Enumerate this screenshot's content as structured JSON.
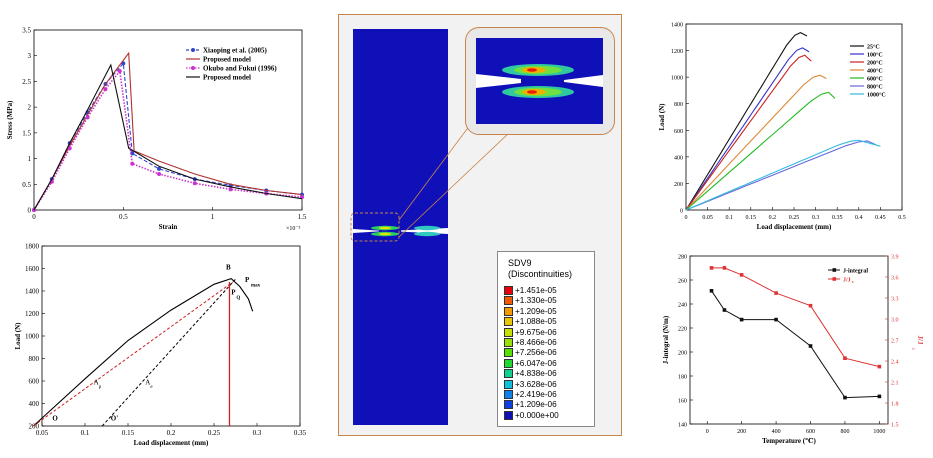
{
  "chart_data": [
    {
      "type": "line",
      "xlabel": "Strain",
      "ylabel": "Stress (MPa)",
      "x_exponent": "×10⁻³",
      "xlim": [
        0,
        1.5
      ],
      "ylim": [
        0,
        3.5
      ],
      "xticks": [
        "0",
        "0.5",
        "1",
        "1.5"
      ],
      "yticks": [
        "0",
        "0.5",
        "1",
        "1.5",
        "2",
        "2.5",
        "3",
        "3.5"
      ],
      "legend": "top-right",
      "series": [
        {
          "name": "Xiaoping et al. (2005)",
          "color": "#3344cc",
          "style": "dashed-circle",
          "x": [
            0,
            0.1,
            0.2,
            0.3,
            0.4,
            0.5,
            0.55,
            0.7,
            0.9,
            1.1,
            1.3,
            1.5
          ],
          "y": [
            0,
            0.6,
            1.3,
            1.9,
            2.45,
            2.85,
            1.1,
            0.8,
            0.6,
            0.48,
            0.38,
            0.3
          ]
        },
        {
          "name": "Proposed model",
          "color": "#b03030",
          "style": "solid",
          "x": [
            0,
            0.1,
            0.2,
            0.3,
            0.4,
            0.53,
            0.56,
            0.7,
            0.9,
            1.1,
            1.3,
            1.5
          ],
          "y": [
            0,
            0.6,
            1.25,
            1.85,
            2.45,
            3.05,
            1.15,
            0.95,
            0.7,
            0.5,
            0.38,
            0.3
          ]
        },
        {
          "name": "Okubo and Fukui (1996)",
          "color": "#cc33cc",
          "style": "dotted-circle",
          "x": [
            0,
            0.1,
            0.2,
            0.3,
            0.4,
            0.48,
            0.55,
            0.7,
            0.9,
            1.1,
            1.3,
            1.5
          ],
          "y": [
            0,
            0.55,
            1.2,
            1.8,
            2.35,
            2.7,
            0.9,
            0.7,
            0.52,
            0.4,
            0.32,
            0.25
          ]
        },
        {
          "name": "Proposed model",
          "color": "#111111",
          "style": "solid",
          "x": [
            0,
            0.1,
            0.2,
            0.3,
            0.43,
            0.53,
            0.58,
            0.7,
            0.9,
            1.1,
            1.3,
            1.5
          ],
          "y": [
            0,
            0.6,
            1.3,
            1.95,
            2.82,
            1.2,
            1.1,
            0.85,
            0.6,
            0.45,
            0.32,
            0.22
          ]
        }
      ]
    },
    {
      "type": "line",
      "xlabel": "Load displacement (mm)",
      "ylabel": "Load (N)",
      "xlim": [
        0.05,
        0.35
      ],
      "ylim": [
        200,
        1800
      ],
      "xticks": [
        "0.05",
        "0.1",
        "0.15",
        "0.2",
        "0.25",
        "0.3",
        "0.35"
      ],
      "yticks": [
        "200",
        "400",
        "600",
        "800",
        "1000",
        "1200",
        "1400",
        "1600",
        "1800"
      ],
      "annotations": {
        "B": "B",
        "Pmax": "P",
        "Pmax_sub": "max",
        "PQ": "P",
        "PQ_sub": "Q",
        "Ap": "A",
        "Ap_sub": "p",
        "Ae": "A",
        "Ae_sub": "e",
        "O": "O",
        "O2": "O'"
      },
      "curve": {
        "x": [
          0.04,
          0.1,
          0.15,
          0.2,
          0.25,
          0.27,
          0.28,
          0.29,
          0.295
        ],
        "y": [
          200,
          620,
          960,
          1230,
          1460,
          1510,
          1440,
          1330,
          1220
        ]
      },
      "secant": {
        "x": [
          0.04,
          0.272
        ],
        "y": [
          200,
          1480
        ]
      },
      "unload": {
        "x": [
          0.12,
          0.275
        ],
        "y": [
          200,
          1505
        ]
      },
      "vertical_x": 0.268
    },
    {
      "type": "contour",
      "legend_title": "SDV9",
      "legend_subtitle": "(Discontinuities)",
      "levels": [
        "+1.451e-05",
        "+1.330e-05",
        "+1.209e-05",
        "+1.088e-05",
        "+9.675e-06",
        "+8.466e-06",
        "+7.256e-06",
        "+6.047e-06",
        "+4.838e-06",
        "+3.628e-06",
        "+2.419e-06",
        "+1.209e-06",
        "+0.000e+00"
      ],
      "level_colors": [
        "#e8000a",
        "#f05a00",
        "#f59a00",
        "#e8c800",
        "#c8e000",
        "#9ae000",
        "#58e000",
        "#20d830",
        "#10d090",
        "#10c0d8",
        "#1080e8",
        "#1040e0",
        "#1010b8"
      ]
    },
    {
      "type": "line",
      "xlabel": "Load displacement (mm)",
      "ylabel": "Load (N)",
      "xlim": [
        0,
        0.5
      ],
      "ylim": [
        0,
        1400
      ],
      "xticks": [
        "0",
        "0.05",
        "0.1",
        "0.15",
        "0.2",
        "0.25",
        "0.3",
        "0.35",
        "0.4",
        "0.45",
        "0.5"
      ],
      "yticks": [
        "0",
        "200",
        "400",
        "600",
        "800",
        "1000",
        "1200",
        "1400"
      ],
      "legend": "top-right",
      "series": [
        {
          "name": "25°C",
          "color": "#111111",
          "peak": [
            0.265,
            1335
          ],
          "end": [
            0.28,
            1310
          ]
        },
        {
          "name": "100°C",
          "color": "#3333cc",
          "peak": [
            0.27,
            1220
          ],
          "end": [
            0.285,
            1190
          ]
        },
        {
          "name": "200°C",
          "color": "#cc2222",
          "peak": [
            0.275,
            1165
          ],
          "end": [
            0.29,
            1120
          ]
        },
        {
          "name": "400°C",
          "color": "#dd8833",
          "peak": [
            0.31,
            1015
          ],
          "end": [
            0.325,
            990
          ]
        },
        {
          "name": "600°C",
          "color": "#22bb22",
          "peak": [
            0.33,
            885
          ],
          "end": [
            0.345,
            840
          ]
        },
        {
          "name": "800°C",
          "color": "#6666dd",
          "peak": [
            0.42,
            520
          ],
          "end": [
            0.44,
            490
          ]
        },
        {
          "name": "1000°C",
          "color": "#33bbdd",
          "peak": [
            0.4,
            525
          ],
          "end": [
            0.45,
            480
          ]
        }
      ]
    },
    {
      "type": "line",
      "xlabel": "Temperature (℃)",
      "ylabel": "J-integral (N/m)",
      "y2label": "J/J",
      "y2label_sub": "c",
      "xlim": [
        -100,
        1050
      ],
      "ylim": [
        140,
        280
      ],
      "y2lim": [
        1.5,
        3.9
      ],
      "xticks": [
        "0",
        "200",
        "400",
        "600",
        "800",
        "1000"
      ],
      "yticks": [
        "140",
        "160",
        "180",
        "200",
        "220",
        "240",
        "260",
        "280"
      ],
      "y2ticks": [
        "1.5",
        "1.8",
        "2.1",
        "2.4",
        "2.7",
        "3.0",
        "3.3",
        "3.6",
        "3.9"
      ],
      "legend": "top-right",
      "series": [
        {
          "name": "J-integral",
          "color": "#111111",
          "axis": "left",
          "x": [
            25,
            100,
            200,
            400,
            600,
            800,
            1000
          ],
          "y": [
            251,
            235,
            227,
            227,
            205,
            162,
            163
          ]
        },
        {
          "name": "J/J",
          "name_sub": "c",
          "color": "#dd3333",
          "axis": "right",
          "x": [
            25,
            100,
            200,
            400,
            600,
            800,
            1000
          ],
          "y": [
            3.73,
            3.73,
            3.63,
            3.37,
            3.19,
            2.44,
            2.32
          ]
        }
      ]
    }
  ]
}
